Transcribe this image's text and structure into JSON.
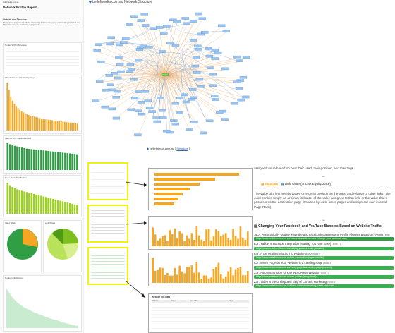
{
  "dashboard": {
    "top_title": "Network Profile Report",
    "header_link": "bellefmedia.com.au",
    "intro_title": "Website and Structure",
    "intro_text": "The structure is assessed with the relationship between the pages and how they are linked, the link position and the distribution of page rank.",
    "panels": [
      {
        "title": "Nodes Within Structure"
      },
      {
        "title": "Inbound Links: Ranked by Page"
      },
      {
        "title": "Internal Link Value: Ranked"
      },
      {
        "title": "Page Rank Distribution"
      },
      {
        "title": "Index Share"
      },
      {
        "title": "Link Share"
      },
      {
        "title": "Nodes Link Volume"
      }
    ],
    "bar_chart_1": [
      10,
      8.5,
      7,
      6.2,
      5.6,
      5.1,
      4.7,
      4.3,
      4,
      3.8,
      3.6,
      3.4,
      3.2,
      3.1,
      3,
      2.9,
      2.8,
      2.7,
      2.6,
      2.5,
      2.4,
      2.35,
      2.3,
      2.25,
      2.2,
      2.15,
      2.1,
      2.05,
      2,
      1.95,
      1.9,
      1.85,
      1.8,
      1.75,
      1.7,
      1.65,
      1.6,
      1.55,
      1.5,
      1.45
    ],
    "bar_chart_2": [
      10,
      9.6,
      9.3,
      9,
      8.8,
      8.6,
      8.4,
      8.2,
      8,
      7.9,
      7.8,
      7.7,
      7.6,
      7.5,
      7.4,
      7.3,
      7.2,
      7.1,
      7,
      6.9,
      6.8,
      6.7,
      6.6,
      6.5,
      6.4,
      6.3,
      6.2,
      6.1,
      6,
      5.9
    ],
    "bar_chart_3": [
      10,
      9.2,
      8.6,
      8.2,
      7.9,
      7.6,
      7.4,
      7.2,
      7,
      6.8,
      6.6,
      6.4,
      6.2,
      6,
      5.8,
      5.6,
      5.4,
      5.2,
      5,
      4.8,
      4.6,
      4.4,
      4.2,
      4,
      3.8,
      3.6,
      3.4,
      3.2,
      3,
      2.8
    ]
  },
  "network": {
    "title": "bellefmedia.com.au Network Structure",
    "center_label": "Home",
    "caption_prefix": "bellefmedia.com.au",
    "caption_link": "Structure"
  },
  "article": {
    "top_text": "assigned value based on how their used, their position, and their tags.",
    "stars": "***",
    "link1": "Structure",
    "link2": "Link Value (or Link Equity/Juice)",
    "para": "The value of a link here is based only on its position on the page and relation to other links. The Juice rank is simply an arbitrary indicator of the value assigned to that link, or the value that it passes onto the destination page (it's used by us to score pages and assign our own internal Page Rank).",
    "stars2": "***",
    "section_title": "Changing Your Facebook and YouTube Banners Based on Website Traffic",
    "items": [
      {
        "num": "16.7",
        "title": "Automatically Update YouTube and Facebook Banners and Profile Pictures Based on Events",
        "tag": "[ DOFF ]",
        "url": "https://www.bellefmedia.com.au/seasonal-social-banners (change your facebook one)"
      },
      {
        "num": "8.3",
        "title": "Yabber's YouTube Integration (Making YouTube Easy)",
        "tag": "[ DOFF 4 ]",
        "url": "https://www.bellefmedia.com.au/making-youtube-easy (youtube)"
      },
      {
        "num": "5.6",
        "title": "A General Introduction to Website SEO",
        "tag": "[ DOFF ]",
        "url": "https://www.bellefmedia.com.au/seo-introduction (organic traffic)"
      },
      {
        "num": "4.2",
        "title": "Every Page on Your Website is a Landing Page",
        "tag": "[ DOFF 3 ]",
        "url": "https://www.bellefmedia.com.au/every-page-is-a-landing-page (content)"
      },
      {
        "num": "3.3",
        "title": "Automating SEO to Your WordPress Website",
        "tag": "[ DOFF 8 ]",
        "url": "https://www.bellefmedia.com.au/seo-yabber (seo yabber)"
      },
      {
        "num": "2.8",
        "title": "Video is the Undisputed King of Content Marketing",
        "tag": "[ DOFF 2 ]",
        "url": "https://www.bellefmedia.com.au/video-content-marketing (video presence)"
      }
    ]
  },
  "thumbs": {
    "table_title": "Website link data",
    "table_headers": [
      "Website",
      "Page",
      "Link URL",
      "Type"
    ]
  },
  "colors": {
    "orange": "#f5a623",
    "green": "#2f9e44",
    "lime": "#9bd21d",
    "blue_node": "#4a90d9",
    "yellow_frame": "#f2f20a"
  }
}
